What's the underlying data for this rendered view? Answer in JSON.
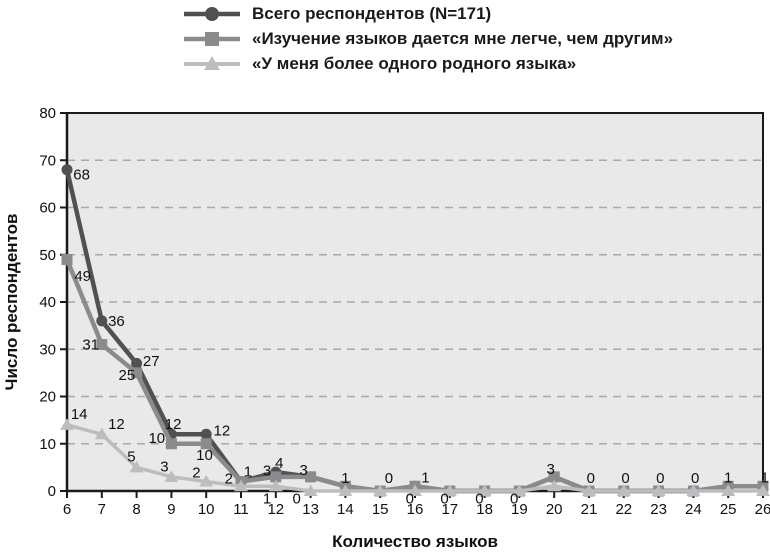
{
  "legend": {
    "items": [
      {
        "label": "Всего респондентов (N=171)",
        "marker": "circle",
        "color": "#515154"
      },
      {
        "label": "«Изучение языков дается мне легче, чем другим»",
        "marker": "square",
        "color": "#8b8b8e"
      },
      {
        "label": "«У меня более одного родного языка»",
        "marker": "triangle",
        "color": "#bdbdc0"
      }
    ]
  },
  "axes": {
    "x_title": "Количество языков",
    "y_title": "Число респондентов",
    "x_ticks": [
      6,
      7,
      8,
      9,
      10,
      11,
      12,
      13,
      14,
      15,
      16,
      17,
      18,
      19,
      20,
      21,
      22,
      23,
      24,
      25,
      26
    ],
    "y_ticks": [
      0,
      10,
      20,
      30,
      40,
      50,
      60,
      70,
      80
    ]
  },
  "colors": {
    "plot_background": "#e9e9e9",
    "gridline": "#a9a9a9",
    "axis": "#1a1a1a",
    "text": "#111111",
    "series_total": "#515154",
    "series_easier": "#8b8b8e",
    "series_native": "#bdbdc0"
  },
  "chart_data": {
    "type": "line",
    "title": "",
    "xlabel": "Количество языков",
    "ylabel": "Число респондентов",
    "xlim": [
      6,
      26
    ],
    "ylim": [
      0,
      80
    ],
    "grid": "horizontal-dashed",
    "legend_position": "top",
    "x": [
      6,
      7,
      8,
      9,
      10,
      11,
      12,
      13,
      14,
      15,
      16,
      17,
      18,
      19,
      20,
      21,
      22,
      23,
      24,
      25,
      26
    ],
    "series": [
      {
        "name": "Всего респондентов (N=171)",
        "marker": "circle",
        "color": "#515154",
        "values": [
          68,
          36,
          27,
          12,
          12,
          2,
          4,
          3,
          1,
          0,
          1,
          0,
          0,
          0,
          3,
          0,
          0,
          0,
          0,
          1,
          1
        ]
      },
      {
        "name": "«Изучение языков дается мне легче, чем другим»",
        "marker": "square",
        "color": "#8b8b8e",
        "values": [
          49,
          31,
          25,
          10,
          10,
          2,
          3,
          3,
          1,
          0,
          1,
          0,
          0,
          0,
          3,
          0,
          0,
          0,
          0,
          1,
          1
        ]
      },
      {
        "name": "«У меня более одного родного языка»",
        "marker": "triangle",
        "color": "#bdbdc0",
        "values": [
          14,
          12,
          5,
          3,
          2,
          1,
          1,
          0,
          0,
          0,
          0,
          0,
          0,
          0,
          1,
          0,
          0,
          0,
          0,
          0,
          0
        ]
      }
    ],
    "point_labels": [
      {
        "x": 6.42,
        "y": 67,
        "text": "68"
      },
      {
        "x": 6.45,
        "y": 45.5,
        "text": "49"
      },
      {
        "x": 6.35,
        "y": 16.3,
        "text": "14"
      },
      {
        "x": 7.42,
        "y": 36,
        "text": "36"
      },
      {
        "x": 6.68,
        "y": 31,
        "text": "31"
      },
      {
        "x": 7.42,
        "y": 14.2,
        "text": "12"
      },
      {
        "x": 8.42,
        "y": 27.5,
        "text": "27"
      },
      {
        "x": 7.72,
        "y": 24.5,
        "text": "25"
      },
      {
        "x": 7.85,
        "y": 7.3,
        "text": "5"
      },
      {
        "x": 9.05,
        "y": 14.2,
        "text": "12"
      },
      {
        "x": 8.58,
        "y": 11.2,
        "text": "10"
      },
      {
        "x": 8.8,
        "y": 5.2,
        "text": "3"
      },
      {
        "x": 10.45,
        "y": 12.8,
        "text": "12"
      },
      {
        "x": 9.95,
        "y": 7.6,
        "text": "10"
      },
      {
        "x": 9.72,
        "y": 3.9,
        "text": "2"
      },
      {
        "x": 10.65,
        "y": 2.6,
        "text": "2"
      },
      {
        "x": 11.2,
        "y": 4.1,
        "text": "1"
      },
      {
        "x": 11.75,
        "y": 4.3,
        "text": "3"
      },
      {
        "x": 12.1,
        "y": 5.9,
        "text": "4"
      },
      {
        "x": 12.8,
        "y": 4.4,
        "text": "3"
      },
      {
        "x": 11.75,
        "y": -1.6,
        "text": "1"
      },
      {
        "x": 12.6,
        "y": -1.6,
        "text": "0"
      },
      {
        "x": 14.0,
        "y": 2.7,
        "text": "1"
      },
      {
        "x": 15.25,
        "y": 2.7,
        "text": "0"
      },
      {
        "x": 16.3,
        "y": 2.9,
        "text": "1"
      },
      {
        "x": 15.85,
        "y": -1.6,
        "text": "0"
      },
      {
        "x": 16.85,
        "y": -1.6,
        "text": "0"
      },
      {
        "x": 17.85,
        "y": -1.6,
        "text": "0"
      },
      {
        "x": 18.85,
        "y": -1.6,
        "text": "0"
      },
      {
        "x": 19.9,
        "y": 4.7,
        "text": "3"
      },
      {
        "x": 21.05,
        "y": 2.7,
        "text": "0"
      },
      {
        "x": 22.05,
        "y": 2.7,
        "text": "0"
      },
      {
        "x": 23.05,
        "y": 2.7,
        "text": "0"
      },
      {
        "x": 24.05,
        "y": 2.7,
        "text": "0"
      },
      {
        "x": 25.0,
        "y": 2.9,
        "text": "1"
      },
      {
        "x": 26.05,
        "y": 2.9,
        "text": "1"
      }
    ]
  }
}
